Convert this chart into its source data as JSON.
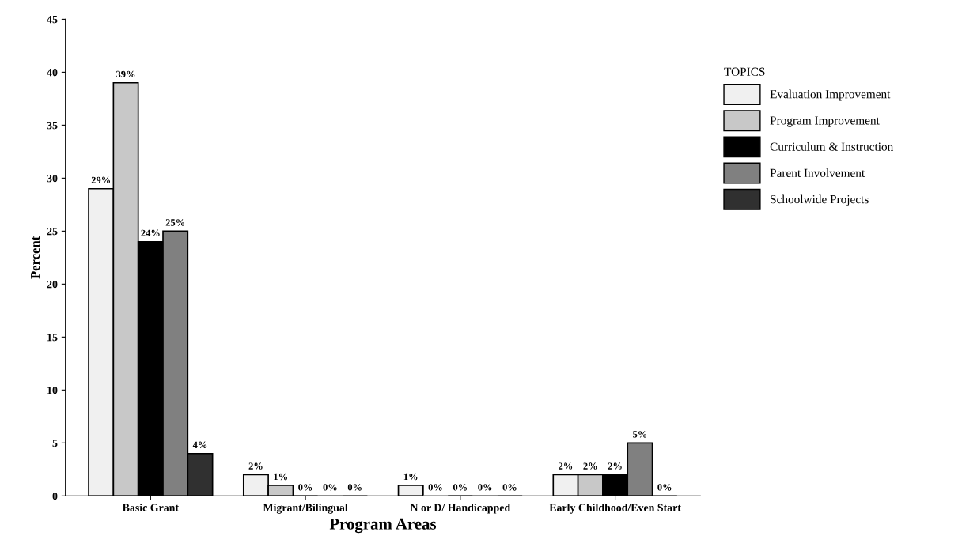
{
  "chart_data": {
    "type": "bar",
    "xlabel": "Program Areas",
    "ylabel": "Percent",
    "legend_title": "TOPICS",
    "categories": [
      "Basic Grant",
      "Migrant/Bilingual",
      "N or D/ Handicapped",
      "Early Childhood/Even Start"
    ],
    "series": [
      {
        "name": "Evaluation Improvement",
        "color": "#f0f0f0",
        "values": [
          29,
          2,
          1,
          2
        ],
        "value_labels": [
          "29%",
          "2%",
          "1%",
          "2%"
        ]
      },
      {
        "name": "Program Improvement",
        "color": "#c8c8c8",
        "values": [
          39,
          1,
          0,
          2
        ],
        "value_labels": [
          "39%",
          "1%",
          "0%",
          "2%"
        ]
      },
      {
        "name": "Curriculum & Instruction",
        "color": "#000000",
        "values": [
          24,
          0,
          0,
          2
        ],
        "value_labels": [
          "24%",
          "0%",
          "0%",
          "2%"
        ]
      },
      {
        "name": "Parent Involvement",
        "color": "#808080",
        "values": [
          25,
          0,
          0,
          5
        ],
        "value_labels": [
          "25%",
          "0%",
          "0%",
          "5%"
        ]
      },
      {
        "name": "Schoolwide Projects",
        "color": "#303030",
        "values": [
          4,
          0,
          0,
          0
        ],
        "value_labels": [
          "4%",
          "0%",
          "0%",
          "0%"
        ]
      }
    ],
    "ylim": [
      0,
      45
    ],
    "yticks": [
      0,
      5,
      10,
      15,
      20,
      25,
      30,
      35,
      40,
      45
    ],
    "grid": false,
    "legend": "right"
  }
}
